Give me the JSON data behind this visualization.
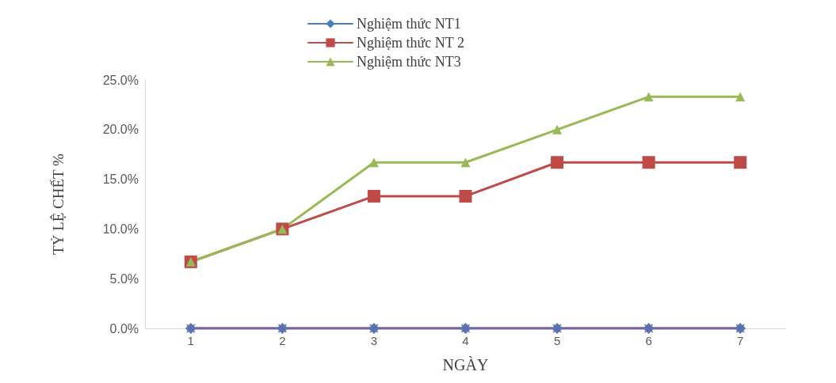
{
  "chart_data": {
    "type": "line",
    "xlabel": "NGÀY",
    "ylabel": "TỶ LỆ CHẾT %",
    "categories": [
      "1",
      "2",
      "3",
      "4",
      "5",
      "6",
      "7"
    ],
    "series": [
      {
        "name": "Nghiệm thức NT1",
        "color": "#4a7ebb",
        "marker": "diamond",
        "values": [
          0,
          0,
          0,
          0,
          0,
          0,
          0
        ]
      },
      {
        "name": "Nghiệm thức NT 2",
        "color": "#be4b48",
        "marker": "square",
        "values": [
          6.7,
          10,
          13.3,
          13.3,
          16.7,
          16.7,
          16.7
        ]
      },
      {
        "name": "Nghiệm thức NT3",
        "color": "#98b954",
        "marker": "triangle",
        "values": [
          6.7,
          10,
          16.7,
          16.7,
          20,
          23.3,
          23.3
        ]
      },
      {
        "color": "#7d5fa0",
        "marker": "cross",
        "values": [
          0,
          0,
          0,
          0,
          0,
          0,
          0
        ]
      }
    ],
    "ylim": [
      0,
      25
    ],
    "yticks": [
      {
        "value": 0,
        "label": "0.0%"
      },
      {
        "value": 5,
        "label": "5.0%"
      },
      {
        "value": 10,
        "label": "10.0%"
      },
      {
        "value": 15,
        "label": "15.0%"
      },
      {
        "value": 20,
        "label": "20.0%"
      },
      {
        "value": 25,
        "label": "25.0%"
      }
    ],
    "grid": false,
    "legend": "top",
    "line_style": "solid"
  }
}
